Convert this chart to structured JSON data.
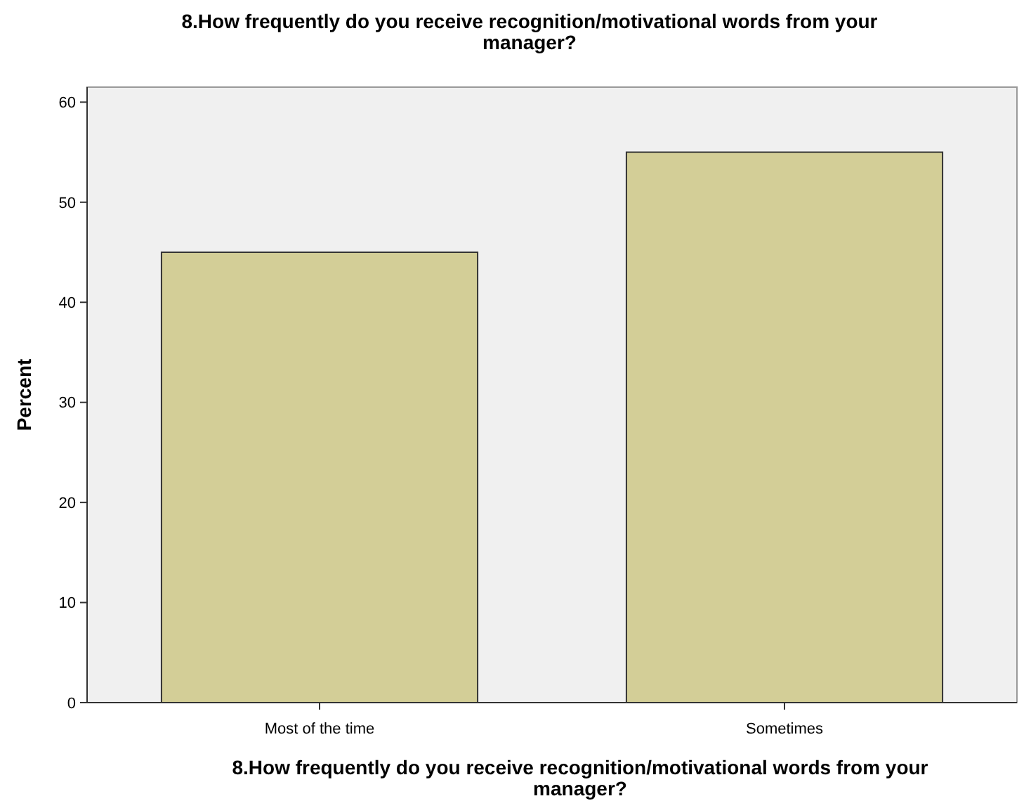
{
  "chart_data": {
    "type": "bar",
    "title": "8.How frequently do you receive recognition/motivational words from your manager?",
    "xlabel": "8.How frequently do you receive recognition/motivational words from your manager?",
    "ylabel": "Percent",
    "categories": [
      "Most of the time",
      "Sometimes"
    ],
    "values": [
      45,
      55
    ],
    "color": "#d3ce97",
    "ylim": [
      0,
      61.5
    ],
    "yticks": [
      0,
      10,
      20,
      30,
      40,
      50,
      60
    ]
  }
}
